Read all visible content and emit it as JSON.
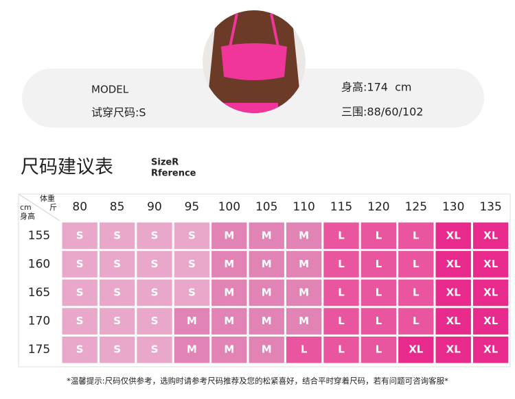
{
  "model_card": {
    "label": "MODEL",
    "trial_size": "试穿尺码:S",
    "height": "身高:174  cm",
    "measurements": "三围:88/60/102"
  },
  "title": "尺码建议表",
  "subtitle": [
    "SizeR",
    "Rference"
  ],
  "table": {
    "corner": {
      "weight": "体重",
      "weight_unit": "斤",
      "height_unit": "cm",
      "height": "身高"
    },
    "columns": [
      "80",
      "85",
      "90",
      "95",
      "100",
      "105",
      "110",
      "115",
      "120",
      "125",
      "130",
      "135"
    ],
    "rows": [
      {
        "height": "155",
        "sizes": [
          "S",
          "S",
          "S",
          "S",
          "M",
          "M",
          "M",
          "L",
          "L",
          "L",
          "XL",
          "XL"
        ]
      },
      {
        "height": "160",
        "sizes": [
          "S",
          "S",
          "S",
          "S",
          "M",
          "M",
          "M",
          "L",
          "L",
          "L",
          "XL",
          "XL"
        ]
      },
      {
        "height": "165",
        "sizes": [
          "S",
          "S",
          "S",
          "S",
          "M",
          "M",
          "M",
          "L",
          "L",
          "L",
          "XL",
          "XL"
        ]
      },
      {
        "height": "170",
        "sizes": [
          "S",
          "S",
          "S",
          "M",
          "M",
          "M",
          "M",
          "L",
          "L",
          "L",
          "XL",
          "XL"
        ]
      },
      {
        "height": "175",
        "sizes": [
          "S",
          "S",
          "S",
          "M",
          "M",
          "M",
          "L",
          "L",
          "L",
          "XL",
          "XL",
          "XL"
        ]
      }
    ],
    "colors": {
      "S": "#e9a8c9",
      "M": "#e283b5",
      "L": "#e9559f",
      "XL": "#e82a8c"
    }
  },
  "footer": "*温馨提示:尺码仅供参考，选购时请参考尺码推荐及您的松紧喜好，结合平时穿着尺码，若有问题可咨询客服*"
}
